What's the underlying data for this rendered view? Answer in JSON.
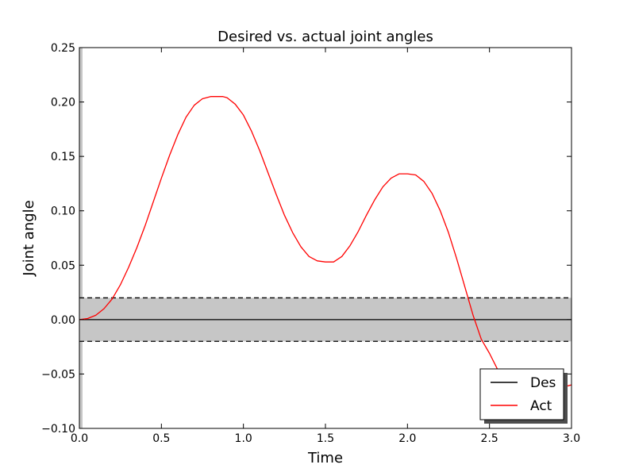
{
  "chart_data": {
    "type": "line",
    "title": "Desired vs. actual joint angles",
    "xlabel": "Time",
    "ylabel": "Joint angle",
    "xlim": [
      0.0,
      3.0
    ],
    "ylim": [
      -0.1,
      0.25
    ],
    "xticks": [
      "0.0",
      "0.5",
      "1.0",
      "1.5",
      "2.0",
      "2.5",
      "3.0"
    ],
    "yticks": [
      "−0.10",
      "−0.05",
      "0.00",
      "0.05",
      "0.10",
      "0.15",
      "0.20",
      "0.25"
    ],
    "xtick_values": [
      0.0,
      0.5,
      1.0,
      1.5,
      2.0,
      2.5,
      3.0
    ],
    "ytick_values": [
      -0.1,
      -0.05,
      0.0,
      0.05,
      0.1,
      0.15,
      0.2,
      0.25
    ],
    "tolerance_band": {
      "lower": -0.02,
      "upper": 0.02,
      "color": "#c6c6c6"
    },
    "series": [
      {
        "name": "Des",
        "color": "#000000",
        "x": [
          0.0,
          3.0
        ],
        "y": [
          0.0,
          0.0
        ]
      },
      {
        "name": "Act",
        "color": "#ff0000",
        "x": [
          0.0,
          0.05,
          0.1,
          0.15,
          0.2,
          0.25,
          0.3,
          0.35,
          0.4,
          0.45,
          0.5,
          0.55,
          0.6,
          0.65,
          0.7,
          0.75,
          0.8,
          0.85,
          0.875,
          0.9,
          0.95,
          1.0,
          1.05,
          1.1,
          1.15,
          1.2,
          1.25,
          1.3,
          1.35,
          1.4,
          1.45,
          1.5,
          1.55,
          1.6,
          1.65,
          1.7,
          1.75,
          1.8,
          1.85,
          1.9,
          1.95,
          2.0,
          2.05,
          2.1,
          2.15,
          2.2,
          2.25,
          2.3,
          2.35,
          2.4,
          2.45,
          2.5,
          2.55,
          2.6,
          2.65,
          2.7,
          2.75,
          2.8,
          2.85,
          2.9,
          2.95,
          3.0
        ],
        "y": [
          0.0,
          0.001,
          0.004,
          0.01,
          0.019,
          0.032,
          0.048,
          0.066,
          0.086,
          0.108,
          0.13,
          0.151,
          0.17,
          0.186,
          0.197,
          0.203,
          0.205,
          0.205,
          0.205,
          0.204,
          0.198,
          0.188,
          0.173,
          0.155,
          0.135,
          0.115,
          0.096,
          0.08,
          0.067,
          0.058,
          0.054,
          0.053,
          0.053,
          0.058,
          0.068,
          0.081,
          0.096,
          0.11,
          0.122,
          0.13,
          0.134,
          0.134,
          0.133,
          0.127,
          0.116,
          0.1,
          0.08,
          0.056,
          0.03,
          0.004,
          -0.018,
          -0.031,
          -0.046,
          -0.057,
          -0.063,
          -0.066,
          -0.067,
          -0.067,
          -0.066,
          -0.064,
          -0.062,
          -0.06
        ]
      }
    ],
    "legend": {
      "placement": "lower-right",
      "entries": [
        "Des",
        "Act"
      ]
    }
  }
}
